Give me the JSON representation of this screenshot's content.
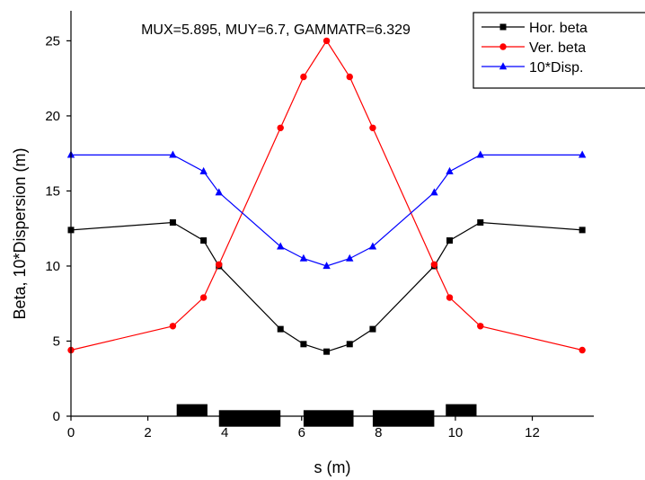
{
  "chart_data": {
    "type": "line",
    "title": "MUX=5.895, MUY=6.7, GAMMATR=6.329",
    "xlabel": "s (m)",
    "ylabel": "Beta, 10*Dispersion (m)",
    "xlim": [
      0,
      13.6
    ],
    "ylim": [
      0,
      27
    ],
    "xticks": [
      "0",
      "2",
      "4",
      "6",
      "8",
      "10",
      "12"
    ],
    "yticks": [
      "0",
      "5",
      "10",
      "15",
      "20",
      "25"
    ],
    "grid": false,
    "legend_position": "top-right",
    "series": [
      {
        "name": "Hor. beta",
        "color": "#000000",
        "marker": "square",
        "x": [
          0,
          2.65,
          3.45,
          3.85,
          5.45,
          6.05,
          6.65,
          7.25,
          7.85,
          9.45,
          9.85,
          10.65,
          13.3
        ],
        "y": [
          12.4,
          12.9,
          11.7,
          10.0,
          5.8,
          4.8,
          4.3,
          4.8,
          5.8,
          10.0,
          11.7,
          12.9,
          12.4
        ]
      },
      {
        "name": "Ver. beta",
        "color": "#ff0000",
        "marker": "circle",
        "x": [
          0,
          2.65,
          3.45,
          3.85,
          5.45,
          6.05,
          6.65,
          7.25,
          7.85,
          9.45,
          9.85,
          10.65,
          13.3
        ],
        "y": [
          4.4,
          6.0,
          7.9,
          10.1,
          19.2,
          22.6,
          25.0,
          22.6,
          19.2,
          10.1,
          7.9,
          6.0,
          4.4
        ]
      },
      {
        "name": "10*Disp.",
        "color": "#0000ff",
        "marker": "triangle",
        "x": [
          0,
          2.65,
          3.45,
          3.85,
          5.45,
          6.05,
          6.65,
          7.25,
          7.85,
          9.45,
          9.85,
          10.65,
          13.3
        ],
        "y": [
          17.4,
          17.4,
          16.3,
          14.9,
          11.3,
          10.5,
          10.0,
          10.5,
          11.3,
          14.9,
          16.3,
          17.4,
          17.4
        ]
      }
    ],
    "lattice_elements": [
      {
        "start": 2.75,
        "end": 3.55,
        "side": "above"
      },
      {
        "start": 3.85,
        "end": 5.45,
        "side": "below"
      },
      {
        "start": 6.05,
        "end": 7.35,
        "side": "below"
      },
      {
        "start": 7.85,
        "end": 9.45,
        "side": "below"
      },
      {
        "start": 9.75,
        "end": 10.55,
        "side": "above"
      }
    ]
  }
}
